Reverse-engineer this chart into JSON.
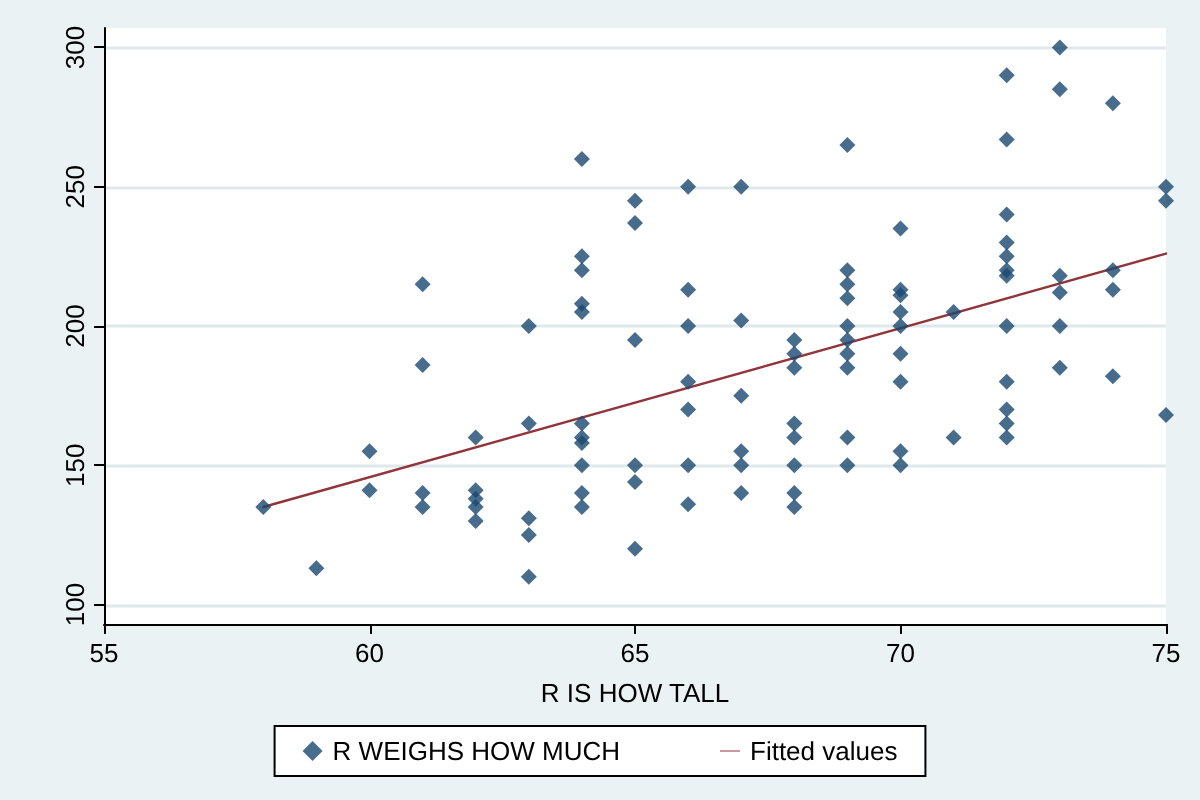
{
  "chart_data": {
    "type": "scatter",
    "xlabel": "R IS HOW TALL",
    "xlim": [
      55,
      75
    ],
    "xticks": [
      55,
      60,
      65,
      70,
      75
    ],
    "ylim": [
      93,
      307
    ],
    "yticks": [
      100,
      150,
      200,
      250,
      300
    ],
    "grid": "y",
    "legend": "bottom",
    "series": [
      {
        "name": "R WEIGHS HOW MUCH",
        "marker": "diamond",
        "color": "#1a476f",
        "x": [
          58,
          59,
          60,
          60,
          61,
          61,
          61,
          61,
          62,
          62,
          62,
          62,
          62,
          63,
          63,
          63,
          63,
          63,
          64,
          64,
          64,
          64,
          64,
          64,
          64,
          64,
          64,
          64,
          64,
          65,
          65,
          65,
          65,
          65,
          65,
          66,
          66,
          66,
          66,
          66,
          66,
          66,
          67,
          67,
          67,
          67,
          67,
          67,
          68,
          68,
          68,
          68,
          68,
          68,
          68,
          68,
          69,
          69,
          69,
          69,
          69,
          69,
          69,
          69,
          69,
          69,
          70,
          70,
          70,
          70,
          70,
          70,
          70,
          70,
          70,
          71,
          71,
          72,
          72,
          72,
          72,
          72,
          72,
          72,
          72,
          72,
          72,
          72,
          72,
          73,
          73,
          73,
          73,
          73,
          73,
          74,
          74,
          74,
          74,
          75,
          75,
          75
        ],
        "values": [
          135,
          113,
          155,
          141,
          215,
          186,
          140,
          135,
          160,
          141,
          138,
          135,
          130,
          200,
          165,
          131,
          125,
          110,
          260,
          225,
          220,
          208,
          205,
          165,
          160,
          158,
          150,
          140,
          135,
          245,
          237,
          195,
          150,
          144,
          120,
          250,
          213,
          200,
          180,
          170,
          150,
          136,
          250,
          202,
          175,
          155,
          150,
          140,
          195,
          190,
          185,
          165,
          160,
          150,
          140,
          135,
          265,
          220,
          215,
          210,
          200,
          195,
          190,
          185,
          160,
          150,
          235,
          213,
          211,
          205,
          200,
          190,
          180,
          155,
          150,
          205,
          160,
          290,
          267,
          240,
          230,
          225,
          220,
          218,
          200,
          180,
          170,
          165,
          160,
          300,
          285,
          218,
          212,
          200,
          185,
          280,
          220,
          213,
          182,
          250,
          245,
          168
        ]
      },
      {
        "name": "Fitted values",
        "type": "line",
        "marker": "none",
        "line_style": "solid",
        "color": "#90353b",
        "x": [
          58,
          75
        ],
        "values": [
          135,
          226
        ]
      }
    ]
  }
}
